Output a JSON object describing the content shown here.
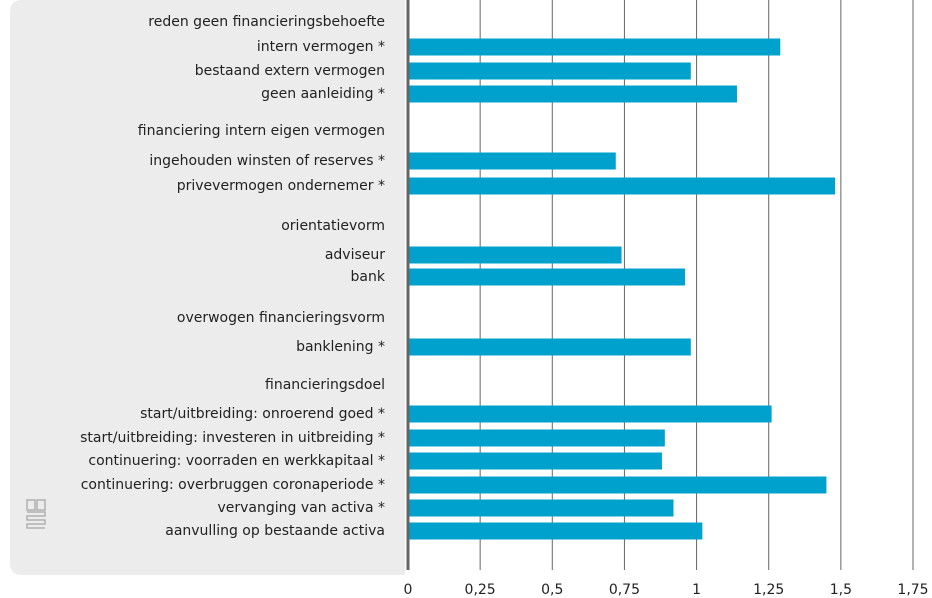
{
  "chart_data": {
    "type": "hbar",
    "color": "#00a1cd",
    "grid": true,
    "categories": [
      "reden geen financieringsbehoefte",
      "intern vermogen *",
      "bestaand extern vermogen",
      "geen aanleiding *",
      "financiering intern eigen vermogen",
      "ingehouden winsten of reserves *",
      "privevermogen ondernemer *",
      "orientatievorm",
      "adviseur",
      "bank",
      "overwogen financieringsvorm",
      "banklening *",
      "financieringsdoel",
      "start/uitbreiding: onroerend goed *",
      "start/uitbreiding: investeren in uitbreiding *",
      "continuering: voorraden en werkkapitaal *",
      "continuering: overbruggen coronaperiode *",
      "vervanging van activa *",
      "aanvulling op bestaande activa"
    ],
    "values": [
      null,
      1.29,
      0.98,
      1.14,
      null,
      0.72,
      1.48,
      null,
      0.74,
      0.96,
      null,
      0.98,
      null,
      1.26,
      0.89,
      0.88,
      1.45,
      0.92,
      1.02
    ],
    "xlim": [
      0,
      1.75
    ],
    "xticks": [
      0,
      {
        "value": 0.25,
        "label": "0,25"
      },
      {
        "value": 0.5,
        "label": "0,5"
      },
      {
        "value": 0.75,
        "label": "0,75"
      },
      1,
      {
        "value": 1.25,
        "label": "1,25"
      },
      {
        "value": 1.5,
        "label": "1,5"
      },
      {
        "value": 1.75,
        "label": "1,75"
      }
    ]
  }
}
